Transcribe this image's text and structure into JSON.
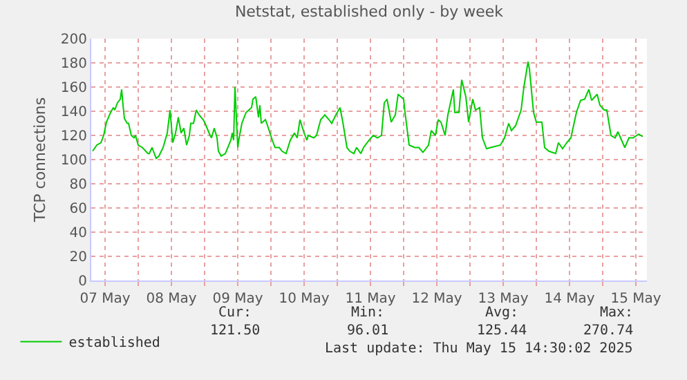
{
  "chart_data": {
    "type": "line",
    "title": "Netstat, established only - by week",
    "ylabel": "TCP connections",
    "x": [
      "2025-05-07T07:30",
      "2025-05-07T09:00",
      "2025-05-07T10:30",
      "2025-05-07T11:30",
      "2025-05-07T12:30",
      "2025-05-07T14:00",
      "2025-05-07T15:00",
      "2025-05-07T15:30",
      "2025-05-07T16:30",
      "2025-05-07T17:30",
      "2025-05-07T18:00",
      "2025-05-07T18:30",
      "2025-05-07T19:00",
      "2025-05-07T20:00",
      "2025-05-07T20:30",
      "2025-05-07T21:30",
      "2025-05-07T22:30",
      "2025-05-07T23:00",
      "2025-05-08T00:00",
      "2025-05-08T01:30",
      "2025-05-08T03:30",
      "2025-05-08T04:00",
      "2025-05-08T05:00",
      "2025-05-08T06:30",
      "2025-05-08T07:30",
      "2025-05-08T09:00",
      "2025-05-08T10:30",
      "2025-05-08T11:30",
      "2025-05-08T12:30",
      "2025-05-08T13:30",
      "2025-05-08T14:30",
      "2025-05-08T15:30",
      "2025-05-08T16:30",
      "2025-05-08T17:30",
      "2025-05-08T18:30",
      "2025-05-08T19:00",
      "2025-05-08T20:00",
      "2025-05-08T21:00",
      "2025-05-08T22:00",
      "2025-05-08T23:30",
      "2025-05-09T00:00",
      "2025-05-09T02:00",
      "2025-05-09T02:30",
      "2025-05-09T03:30",
      "2025-05-09T04:30",
      "2025-05-09T05:00",
      "2025-05-09T06:00",
      "2025-05-09T07:30",
      "2025-05-09T09:30",
      "2025-05-09T10:00",
      "2025-05-09T10:30",
      "2025-05-09T11:00",
      "2025-05-09T12:00",
      "2025-05-09T12:30",
      "2025-05-09T13:30",
      "2025-05-09T15:00",
      "2025-05-09T17:00",
      "2025-05-09T17:30",
      "2025-05-09T18:30",
      "2025-05-09T19:30",
      "2025-05-09T20:00",
      "2025-05-09T20:30",
      "2025-05-09T22:00",
      "2025-05-09T22:30",
      "2025-05-10T00:30",
      "2025-05-10T01:30",
      "2025-05-10T03:00",
      "2025-05-10T04:00",
      "2025-05-10T05:30",
      "2025-05-10T07:00",
      "2025-05-10T08:30",
      "2025-05-10T09:30",
      "2025-05-10T10:30",
      "2025-05-10T12:00",
      "2025-05-10T13:00",
      "2025-05-10T13:30",
      "2025-05-10T15:30",
      "2025-05-10T16:30",
      "2025-05-10T18:00",
      "2025-05-10T19:30",
      "2025-05-10T21:00",
      "2025-05-10T22:00",
      "2025-05-10T23:30",
      "2025-05-11T01:00",
      "2025-05-11T02:00",
      "2025-05-11T03:30",
      "2025-05-11T04:30",
      "2025-05-11T06:00",
      "2025-05-11T07:00",
      "2025-05-11T08:30",
      "2025-05-11T09:30",
      "2025-05-11T11:30",
      "2025-05-11T13:00",
      "2025-05-11T14:30",
      "2025-05-11T16:00",
      "2025-05-11T17:00",
      "2025-05-11T18:00",
      "2025-05-11T19:30",
      "2025-05-11T21:00",
      "2025-05-11T22:00",
      "2025-05-12T00:00",
      "2025-05-12T00:30",
      "2025-05-12T02:00",
      "2025-05-12T04:00",
      "2025-05-12T05:30",
      "2025-05-12T07:00",
      "2025-05-12T09:00",
      "2025-05-12T10:00",
      "2025-05-12T11:30",
      "2025-05-12T12:30",
      "2025-05-12T13:30",
      "2025-05-12T15:00",
      "2025-05-12T16:00",
      "2025-05-12T18:00",
      "2025-05-12T18:30",
      "2025-05-12T20:00",
      "2025-05-12T21:00",
      "2025-05-12T22:30",
      "2025-05-12T23:30",
      "2025-05-13T01:00",
      "2025-05-13T02:00",
      "2025-05-13T03:30",
      "2025-05-13T04:30",
      "2025-05-13T06:00",
      "2025-05-13T07:30",
      "2025-05-13T11:00",
      "2025-05-13T12:30",
      "2025-05-13T14:00",
      "2025-05-13T15:00",
      "2025-05-13T16:30",
      "2025-05-13T18:30",
      "2025-05-13T19:30",
      "2025-05-13T21:00",
      "2025-05-13T21:30",
      "2025-05-13T23:00",
      "2025-05-14T00:00",
      "2025-05-14T02:00",
      "2025-05-14T03:00",
      "2025-05-14T04:30",
      "2025-05-14T07:00",
      "2025-05-14T08:00",
      "2025-05-14T09:30",
      "2025-05-14T11:00",
      "2025-05-14T12:30",
      "2025-05-14T14:30",
      "2025-05-14T16:00",
      "2025-05-14T17:30",
      "2025-05-14T19:00",
      "2025-05-14T20:00",
      "2025-05-14T22:00",
      "2025-05-14T23:00",
      "2025-05-15T00:30",
      "2025-05-15T01:30",
      "2025-05-15T03:00",
      "2025-05-15T04:30",
      "2025-05-15T05:30",
      "2025-05-15T08:00",
      "2025-05-15T09:30",
      "2025-05-15T11:00",
      "2025-05-15T13:00",
      "2025-05-15T14:30"
    ],
    "series": [
      {
        "name": "established",
        "color": "#00cc00",
        "values": [
          107,
          112,
          114,
          120,
          131,
          139,
          143,
          141,
          147,
          150,
          158,
          145,
          134,
          130,
          130,
          120,
          118,
          120,
          112,
          110,
          105,
          105,
          110,
          101,
          103,
          110,
          122,
          141,
          114,
          122,
          135,
          122,
          126,
          112,
          120,
          130,
          130,
          141,
          137,
          133,
          131,
          120,
          118,
          126,
          118,
          107,
          103,
          105,
          116,
          122,
          116,
          160,
          110,
          118,
          130,
          139,
          143,
          150,
          152,
          135,
          145,
          130,
          133,
          130,
          116,
          110,
          110,
          107,
          105,
          116,
          122,
          118,
          133,
          122,
          116,
          120,
          118,
          120,
          133,
          137,
          133,
          130,
          137,
          143,
          131,
          110,
          107,
          105,
          110,
          105,
          110,
          116,
          120,
          118,
          120,
          147,
          150,
          131,
          137,
          154,
          150,
          139,
          112,
          110,
          110,
          106,
          112,
          124,
          120,
          133,
          131,
          120,
          137,
          158,
          139,
          139,
          166,
          152,
          131,
          150,
          141,
          143,
          118,
          109,
          110,
          112,
          118,
          130,
          124,
          128,
          141,
          160,
          181,
          175,
          139,
          131,
          131,
          110,
          107,
          105,
          114,
          109,
          114,
          118,
          139,
          149,
          150,
          158,
          149,
          154,
          145,
          141,
          141,
          120,
          118,
          123,
          110,
          118,
          118,
          121,
          119
        ]
      }
    ],
    "xlim": [
      "2025-05-07T07:00",
      "2025-05-15T16:00"
    ],
    "xticks": [
      {
        "value": "2025-05-07T12:00",
        "label": "07 May"
      },
      {
        "value": "2025-05-08T00:00",
        "label": null
      },
      {
        "value": "2025-05-08T12:00",
        "label": "08 May"
      },
      {
        "value": "2025-05-09T00:00",
        "label": null
      },
      {
        "value": "2025-05-09T12:00",
        "label": "09 May"
      },
      {
        "value": "2025-05-10T00:00",
        "label": null
      },
      {
        "value": "2025-05-10T12:00",
        "label": "10 May"
      },
      {
        "value": "2025-05-11T00:00",
        "label": null
      },
      {
        "value": "2025-05-11T12:00",
        "label": "11 May"
      },
      {
        "value": "2025-05-12T00:00",
        "label": null
      },
      {
        "value": "2025-05-12T12:00",
        "label": "12 May"
      },
      {
        "value": "2025-05-13T00:00",
        "label": null
      },
      {
        "value": "2025-05-13T12:00",
        "label": "13 May"
      },
      {
        "value": "2025-05-14T00:00",
        "label": null
      },
      {
        "value": "2025-05-14T12:00",
        "label": "14 May"
      },
      {
        "value": "2025-05-15T00:00",
        "label": null
      },
      {
        "value": "2025-05-15T12:00",
        "label": "15 May"
      }
    ],
    "ylim": [
      0,
      200
    ],
    "yticks": [
      0,
      20,
      40,
      60,
      80,
      100,
      120,
      140,
      160,
      180,
      200
    ],
    "grid": true,
    "legend": "bottom left",
    "marker": "none",
    "line_style": "solid",
    "annotations": [
      "Cur:",
      "Min:",
      "Avg:",
      "Max:",
      "121.50",
      "96.01",
      "125.44",
      "270.74",
      "Last update: Thu May 15 14:30:02 2025"
    ]
  }
}
